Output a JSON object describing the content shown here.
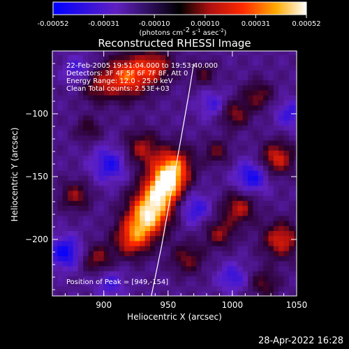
{
  "chart_data": {
    "type": "heatmap",
    "title": "Reconstructed RHESSI Image",
    "xlabel": "Heliocentric X (arcsec)",
    "ylabel": "Heliocentric Y (arcsec)",
    "xlim": [
      860,
      1050
    ],
    "ylim": [
      -245,
      -50
    ],
    "x_ticks": [
      900,
      950,
      1000,
      1050
    ],
    "y_ticks": [
      -100,
      -150,
      -200
    ],
    "colorbar": {
      "range": [
        -0.00052,
        0.00052
      ],
      "ticks": [
        "-0.00052",
        "-0.00031",
        "-0.00010",
        "0.00010",
        "0.00031",
        "0.00052"
      ],
      "label_main": "(photons cm",
      "label_exp1": "-2",
      "label_s": " s",
      "label_exp2": "-1",
      "label_asec": " asec",
      "label_exp3": "-2",
      "label_end": ")"
    },
    "annotations": [
      "22-Feb-2005 19:51:04.000 to 19:53:40.000",
      "Detectors: 3F 4F 5F 6F 7F 8F, Att 0",
      "Energy Range: 12.0 - 25.0 keV",
      "Clean      Total counts: 2.53E+03"
    ],
    "peak_label": "Position of Peak = [949,-154]",
    "peak": [
      949,
      -154
    ],
    "limb_points": [
      [
        937,
        -245
      ],
      [
        945,
        -205
      ],
      [
        952,
        -165
      ],
      [
        960,
        -120
      ],
      [
        966,
        -85
      ],
      [
        970,
        -60
      ]
    ],
    "blobs": [
      {
        "x": 949,
        "y": -154,
        "amp": 1.0,
        "sigma": 10
      },
      {
        "x": 940,
        "y": -170,
        "amp": 0.9,
        "sigma": 12
      },
      {
        "x": 955,
        "y": -140,
        "amp": 0.75,
        "sigma": 10
      },
      {
        "x": 932,
        "y": -185,
        "amp": 0.8,
        "sigma": 11
      },
      {
        "x": 922,
        "y": -200,
        "amp": 0.7,
        "sigma": 10
      },
      {
        "x": 930,
        "y": -128,
        "amp": 0.55,
        "sigma": 10
      },
      {
        "x": 918,
        "y": -70,
        "amp": 0.85,
        "sigma": 12
      },
      {
        "x": 940,
        "y": -62,
        "amp": 0.6,
        "sigma": 10
      },
      {
        "x": 895,
        "y": -78,
        "amp": 0.45,
        "sigma": 9
      },
      {
        "x": 1035,
        "y": -135,
        "amp": 0.7,
        "sigma": 9
      },
      {
        "x": 1038,
        "y": -200,
        "amp": 0.7,
        "sigma": 10
      },
      {
        "x": 1005,
        "y": -175,
        "amp": 0.6,
        "sigma": 9
      },
      {
        "x": 990,
        "y": -195,
        "amp": 0.5,
        "sigma": 8
      },
      {
        "x": 1002,
        "y": -100,
        "amp": 0.5,
        "sigma": 8
      },
      {
        "x": 1020,
        "y": -85,
        "amp": 0.45,
        "sigma": 8
      },
      {
        "x": 878,
        "y": -165,
        "amp": 0.5,
        "sigma": 8
      },
      {
        "x": 895,
        "y": -215,
        "amp": 0.5,
        "sigma": 8
      },
      {
        "x": 888,
        "y": -112,
        "amp": 0.35,
        "sigma": 7
      },
      {
        "x": 988,
        "y": -130,
        "amp": 0.4,
        "sigma": 7
      },
      {
        "x": 965,
        "y": -215,
        "amp": 0.45,
        "sigma": 9
      },
      {
        "x": 1025,
        "y": -235,
        "amp": 0.4,
        "sigma": 8
      },
      {
        "x": 978,
        "y": -68,
        "amp": 0.35,
        "sigma": 7
      },
      {
        "x": 905,
        "y": -140,
        "amp": -0.5,
        "sigma": 10
      },
      {
        "x": 1015,
        "y": -150,
        "amp": -0.55,
        "sigma": 9
      },
      {
        "x": 870,
        "y": -210,
        "amp": -0.6,
        "sigma": 9
      },
      {
        "x": 970,
        "y": -175,
        "amp": -0.45,
        "sigma": 9
      },
      {
        "x": 1045,
        "y": -100,
        "amp": -0.4,
        "sigma": 8
      },
      {
        "x": 880,
        "y": -65,
        "amp": -0.35,
        "sigma": 8
      },
      {
        "x": 1000,
        "y": -230,
        "amp": -0.4,
        "sigma": 8
      },
      {
        "x": 985,
        "y": -92,
        "amp": -0.35,
        "sigma": 8
      },
      {
        "x": 905,
        "y": -235,
        "amp": -0.35,
        "sigma": 8
      }
    ]
  },
  "footer": {
    "timestamp": "28-Apr-2022 16:28"
  }
}
